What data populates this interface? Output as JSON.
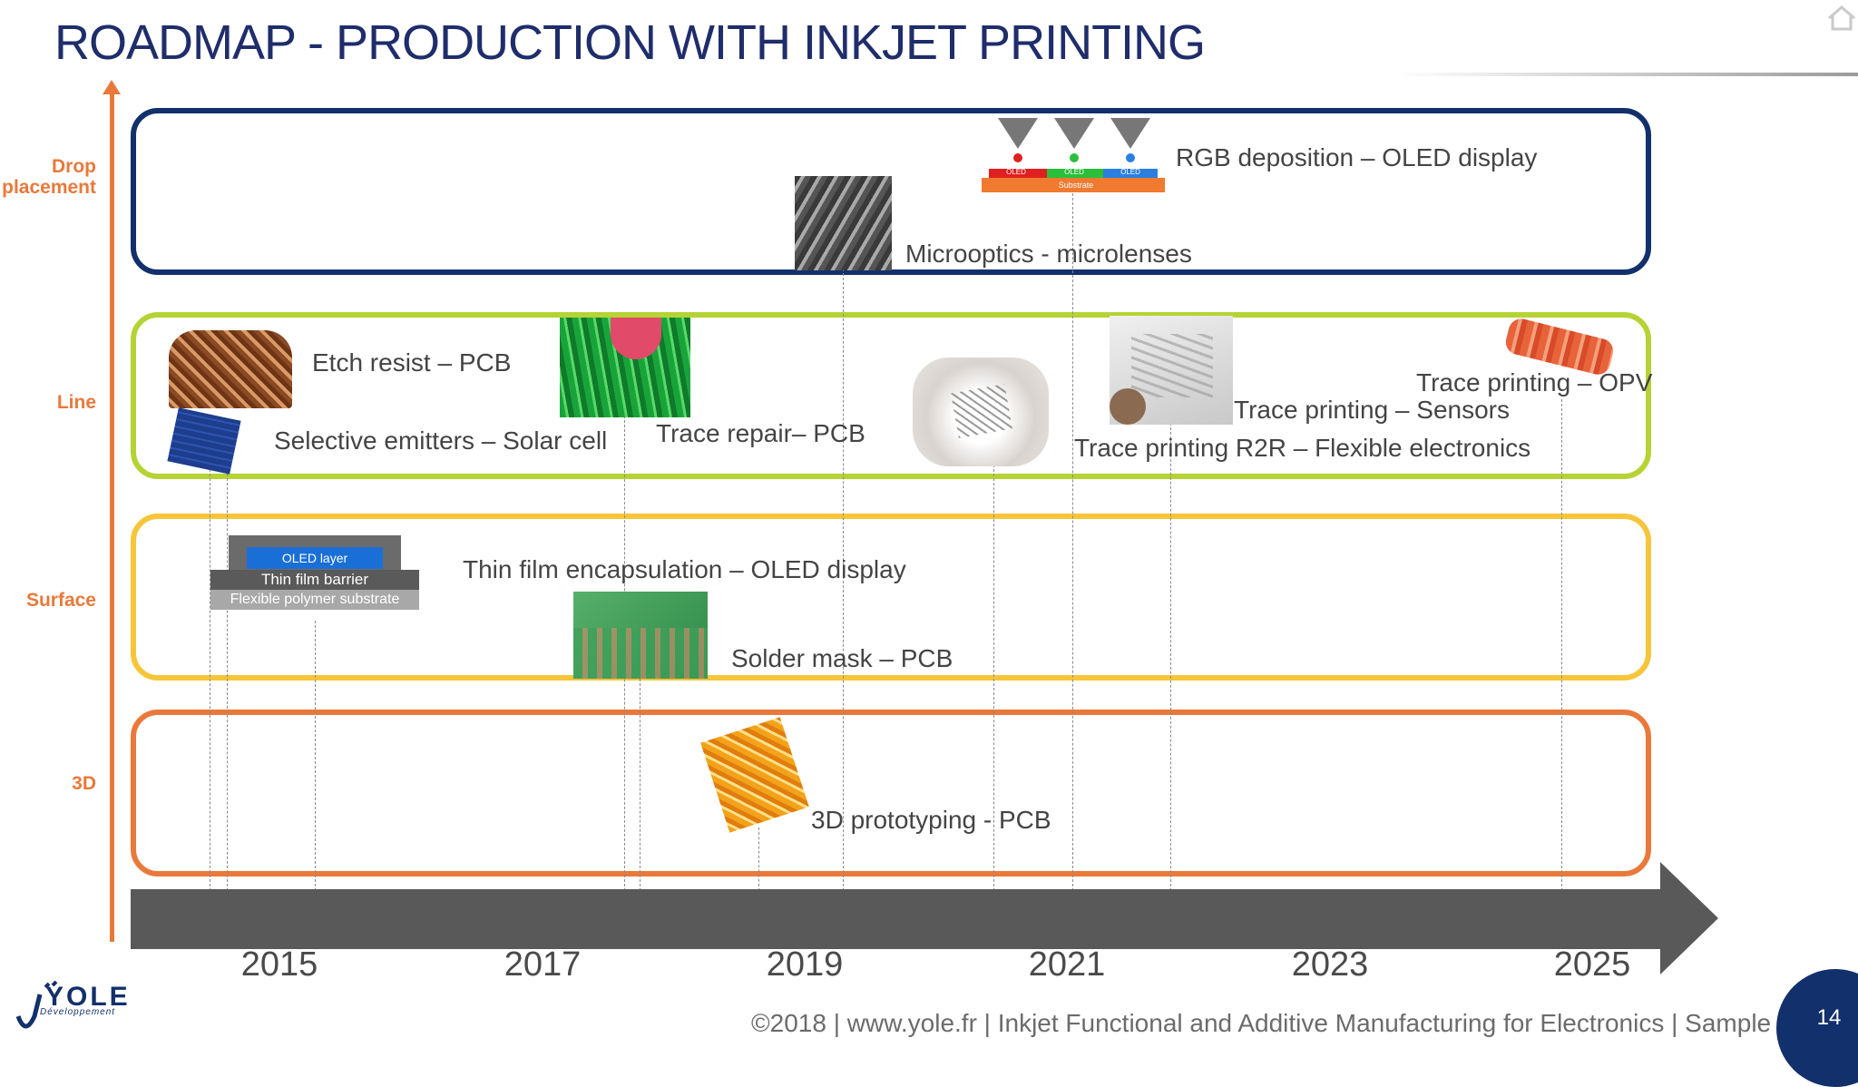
{
  "title": "ROADMAP - PRODUCTION WITH INKJET PRINTING",
  "categories": {
    "drop": "Drop placement",
    "line": "Line",
    "surface": "Surface",
    "three_d": "3D"
  },
  "years": [
    "2015",
    "2017",
    "2019",
    "2021",
    "2023",
    "2025"
  ],
  "items": {
    "rgb": "RGB deposition – OLED display",
    "microoptics": "Microoptics - microlenses",
    "etch": "Etch resist – PCB",
    "emitters": "Selective emitters – Solar cell",
    "trace_repair": "Trace repair– PCB",
    "trace_sensors": "Trace printing – Sensors",
    "trace_opv": "Trace printing – OPV",
    "trace_r2r": "Trace printing R2R – Flexible electronics",
    "tfe": "Thin film encapsulation – OLED display",
    "solder": "Solder mask – PCB",
    "proto3d": "3D prototyping - PCB"
  },
  "oled_stack": {
    "oled": "OLED layer",
    "barrier": "Thin film barrier",
    "substrate": "Flexible polymer substrate"
  },
  "rgb_diagram": {
    "pixels": [
      "OLED",
      "OLED",
      "OLED"
    ],
    "substrate": "Substrate"
  },
  "footer": "©2018 | www.yole.fr | Inkjet Functional and Additive Manufacturing for Electronics | Sample",
  "page_number": "14",
  "logo": {
    "name": "YOLE",
    "sub": "Développement"
  },
  "colors": {
    "title": "#1f2d6b",
    "axis": "#e9793b",
    "drop_band": "#12306b",
    "line_band": "#b5d334",
    "surface_band": "#f7c53a",
    "three_d_band": "#e9793b",
    "timeline": "#595959"
  }
}
